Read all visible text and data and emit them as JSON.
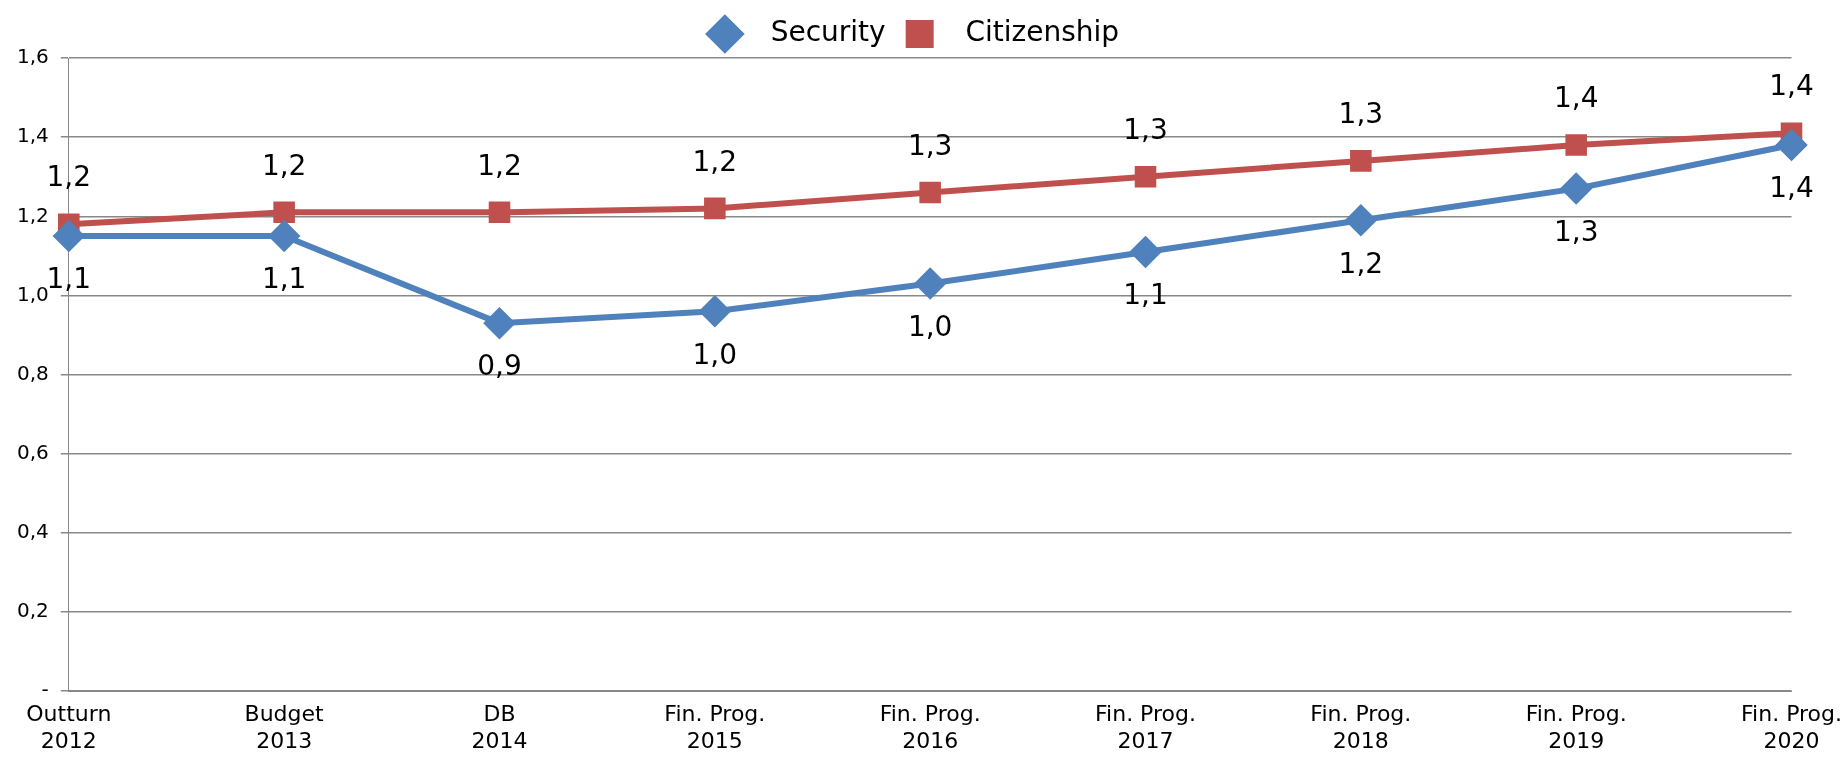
{
  "chart_data": {
    "type": "line",
    "categories": [
      "Outturn\n2012",
      "Budget\n2013",
      "DB\n2014",
      "Fin. Prog.\n2015",
      "Fin. Prog.\n2016",
      "Fin. Prog.\n2017",
      "Fin. Prog.\n2018",
      "Fin. Prog.\n2019",
      "Fin. Prog.\n2020"
    ],
    "series": [
      {
        "name": "Security",
        "color": "#4f81bd",
        "marker": "diamond",
        "values": [
          1.15,
          1.15,
          0.93,
          0.96,
          1.03,
          1.11,
          1.19,
          1.27,
          1.38
        ],
        "value_labels": [
          "1,1",
          "1,1",
          "0,9",
          "1,0",
          "1,0",
          "1,1",
          "1,2",
          "1,3",
          "1,4"
        ]
      },
      {
        "name": "Citizenship",
        "color": "#c0504d",
        "marker": "square",
        "values": [
          1.18,
          1.21,
          1.21,
          1.22,
          1.26,
          1.3,
          1.34,
          1.38,
          1.41
        ],
        "value_labels": [
          "1,2",
          "1,2",
          "1,2",
          "1,2",
          "1,3",
          "1,3",
          "1,3",
          "1,4",
          "1,4"
        ]
      }
    ],
    "ylim": [
      0,
      1.6
    ],
    "yticks": [
      {
        "value": 0,
        "label": "-"
      },
      {
        "value": 0.2,
        "label": "0,2"
      },
      {
        "value": 0.4,
        "label": "0,4"
      },
      {
        "value": 0.6,
        "label": "0,6"
      },
      {
        "value": 0.8,
        "label": "0,8"
      },
      {
        "value": 1.0,
        "label": "1,0"
      },
      {
        "value": 1.2,
        "label": "1,2"
      },
      {
        "value": 1.4,
        "label": "1,4"
      },
      {
        "value": 1.6,
        "label": "1,6"
      }
    ],
    "grid": "y",
    "legend": "top",
    "line_style": "solid"
  }
}
